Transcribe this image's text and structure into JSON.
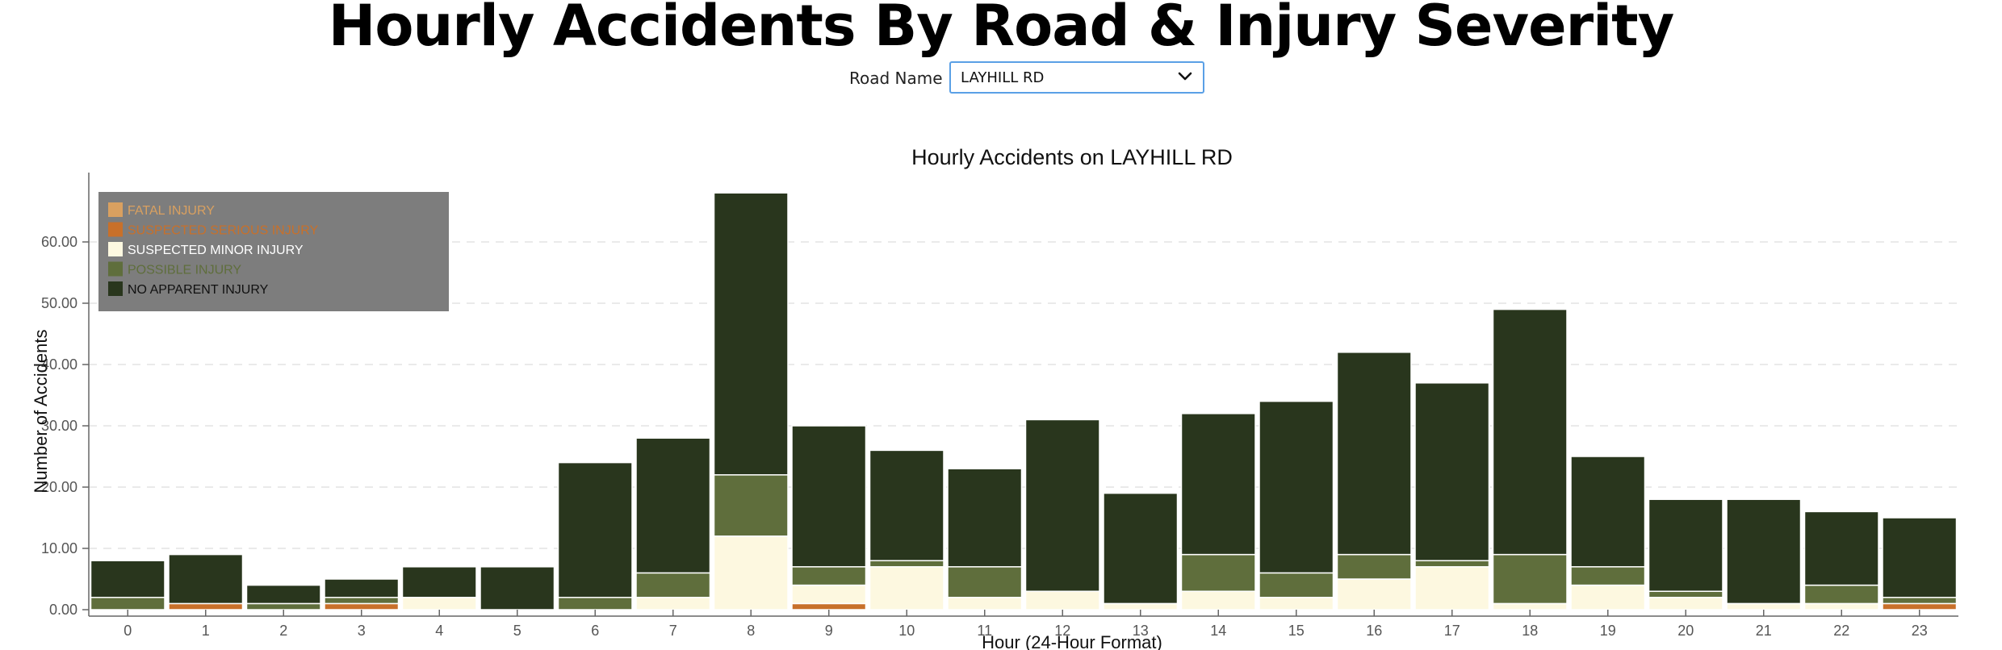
{
  "page": {
    "title": "Hourly Accidents By Road & Injury Severity"
  },
  "filter": {
    "label": "Road Name",
    "selected": "LAYHILL RD"
  },
  "chart_data": {
    "type": "bar",
    "stacked": true,
    "title": "Hourly Accidents on LAYHILL RD",
    "xlabel": "Hour (24-Hour Format)",
    "ylabel": "Number of Accidents",
    "ylim": [
      0,
      70
    ],
    "yticks": [
      "0.00",
      "10.00",
      "20.00",
      "30.00",
      "40.00",
      "50.00",
      "60.00"
    ],
    "categories": [
      "0",
      "1",
      "2",
      "3",
      "4",
      "5",
      "6",
      "7",
      "8",
      "9",
      "10",
      "11",
      "12",
      "13",
      "14",
      "15",
      "16",
      "17",
      "18",
      "19",
      "20",
      "21",
      "22",
      "23"
    ],
    "grid": "horizontal dashed",
    "legend_position": "top-left",
    "series": [
      {
        "name": "FATAL INJURY",
        "color": "#d9a060",
        "values": [
          0,
          0,
          0,
          0,
          0,
          0,
          0,
          0,
          0,
          0,
          0,
          0,
          0,
          0,
          0,
          0,
          0,
          0,
          0,
          0,
          0,
          0,
          0,
          0
        ]
      },
      {
        "name": "SUSPECTED SERIOUS INJURY",
        "color": "#c8702a",
        "values": [
          0,
          1,
          0,
          1,
          0,
          0,
          0,
          0,
          0,
          1,
          0,
          0,
          0,
          0,
          0,
          0,
          0,
          0,
          0,
          0,
          0,
          0,
          0,
          1
        ]
      },
      {
        "name": "SUSPECTED MINOR INJURY",
        "color": "#fdf8e0",
        "values": [
          0,
          0,
          0,
          0,
          2,
          0,
          0,
          2,
          12,
          3,
          7,
          2,
          3,
          1,
          3,
          2,
          5,
          7,
          1,
          4,
          2,
          1,
          1,
          0
        ]
      },
      {
        "name": "POSSIBLE INJURY",
        "color": "#5f6e3c",
        "values": [
          2,
          0,
          1,
          1,
          0,
          0,
          2,
          4,
          10,
          3,
          1,
          5,
          0,
          0,
          6,
          4,
          4,
          1,
          8,
          3,
          1,
          0,
          3,
          1
        ]
      },
      {
        "name": "NO APPARENT INJURY",
        "color": "#29361d",
        "values": [
          6,
          8,
          3,
          3,
          5,
          7,
          22,
          22,
          46,
          23,
          18,
          16,
          28,
          18,
          23,
          28,
          33,
          29,
          40,
          18,
          15,
          17,
          12,
          13
        ]
      }
    ]
  }
}
